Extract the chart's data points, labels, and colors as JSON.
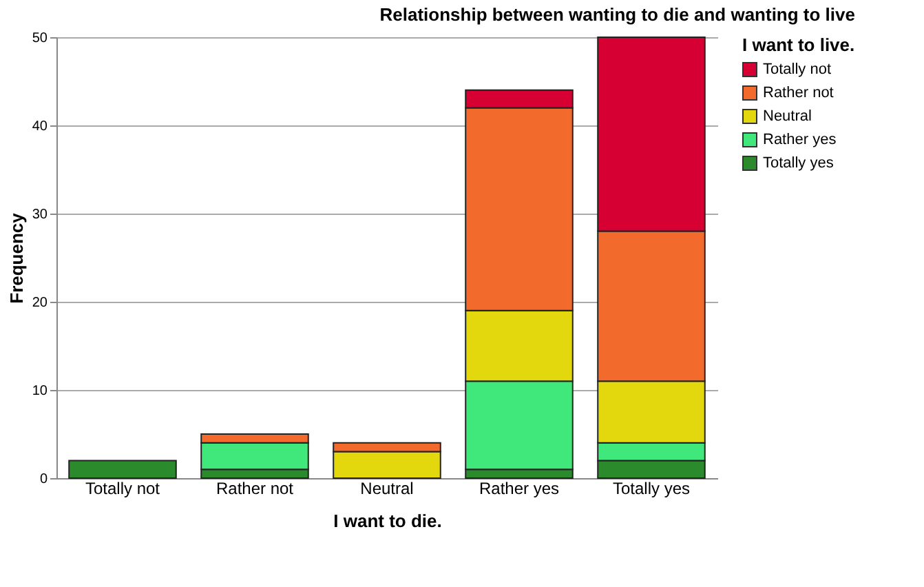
{
  "chart_data": {
    "type": "bar",
    "title": "Relationship between wanting to die and wanting to live",
    "xlabel": "I want to die.",
    "ylabel": "Frequency",
    "legend_title": "I want to live.",
    "categories": [
      "Totally not",
      "Rather not",
      "Neutral",
      "Rather yes",
      "Totally yes"
    ],
    "stacked": true,
    "series": [
      {
        "name": "Totally yes",
        "color": "#2b8a2b",
        "values": [
          2,
          1,
          0,
          1,
          2
        ]
      },
      {
        "name": "Rather yes",
        "color": "#40e87c",
        "values": [
          0,
          3,
          0,
          10,
          2
        ]
      },
      {
        "name": "Neutral",
        "color": "#e3d80e",
        "values": [
          0,
          0,
          3,
          8,
          7
        ]
      },
      {
        "name": "Rather not",
        "color": "#f26a2c",
        "values": [
          0,
          1,
          1,
          23,
          17
        ]
      },
      {
        "name": "Totally not",
        "color": "#d60032",
        "values": [
          0,
          0,
          0,
          2,
          22
        ]
      }
    ],
    "ylim": [
      0,
      50
    ],
    "yticks": [
      0,
      10,
      20,
      30,
      40,
      50
    ],
    "grid": "y",
    "legend": "top right"
  }
}
